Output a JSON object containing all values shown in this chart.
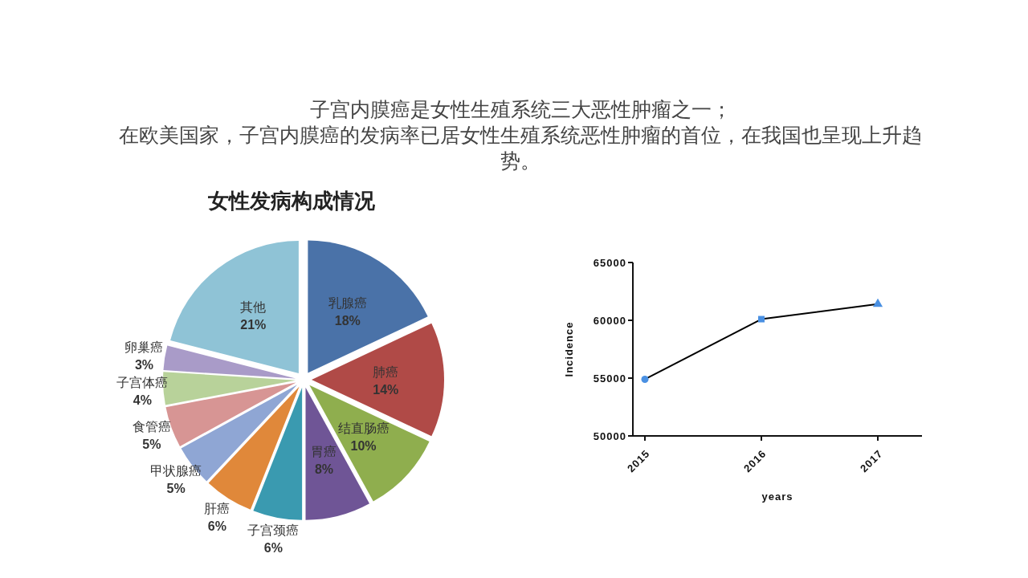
{
  "chart_data": [
    {
      "type": "pie",
      "title": "女性发病构成情况",
      "annotations": [
        "子宫内膜癌是女性生殖系统三大恶性肿瘤之一；",
        "在欧美国家，子宫内膜癌的发病率已居女性生殖系统恶性肿瘤的首位，在我国也呈现上升趋势。"
      ],
      "categories": [
        "乳腺癌",
        "肺癌",
        "结直肠癌",
        "胃癌",
        "子宫颈癌",
        "肝癌",
        "甲状腺癌",
        "食管癌",
        "子宫体癌",
        "卵巢癌",
        "其他"
      ],
      "values": [
        18,
        14,
        10,
        8,
        6,
        6,
        5,
        5,
        4,
        3,
        21
      ],
      "colors": [
        "#4a72a8",
        "#b04a47",
        "#8fae4e",
        "#6f5596",
        "#3a9ab0",
        "#e0883a",
        "#8fa6d4",
        "#d79594",
        "#b8d29a",
        "#a99bc8",
        "#8fc3d6"
      ],
      "value_labels": [
        "18%",
        "14%",
        "10%",
        "8%",
        "6%",
        "6%",
        "5%",
        "5%",
        "4%",
        "3%",
        "21%"
      ]
    },
    {
      "type": "line",
      "xlabel": "years",
      "ylabel": "Incidence",
      "categories": [
        "2015",
        "2016",
        "2017"
      ],
      "ylim": [
        50000,
        65000
      ],
      "yticks": [
        50000,
        55000,
        60000,
        65000
      ],
      "series": [
        {
          "type": "line",
          "color": "#000000",
          "values": [
            54900,
            60100,
            61400
          ],
          "marker": "none"
        },
        {
          "type": "scatter",
          "color": "#4a90e2",
          "values": [
            54900,
            null,
            null
          ],
          "marker": "circle"
        },
        {
          "type": "scatter",
          "color": "#4a90e2",
          "values": [
            null,
            60100,
            null
          ],
          "marker": "square"
        },
        {
          "type": "scatter",
          "color": "#4a90e2",
          "values": [
            null,
            null,
            61400
          ],
          "marker": "triangle"
        }
      ]
    }
  ]
}
